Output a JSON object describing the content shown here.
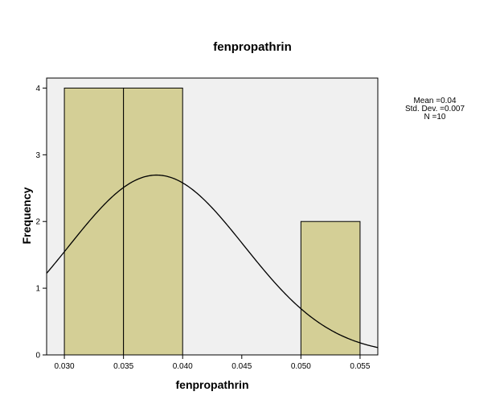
{
  "chart_data": {
    "type": "bar",
    "title": "fenpropathrin",
    "xlabel": "fenpropathrin",
    "ylabel": "Frequency",
    "xlim": [
      0.0285,
      0.0565
    ],
    "ylim": [
      0,
      4.15
    ],
    "bins": [
      {
        "start": 0.03,
        "end": 0.035,
        "count": 4
      },
      {
        "start": 0.035,
        "end": 0.04,
        "count": 4
      },
      {
        "start": 0.05,
        "end": 0.055,
        "count": 2
      }
    ],
    "xticks": [
      "0.030",
      "0.035",
      "0.040",
      "0.045",
      "0.050",
      "0.055"
    ],
    "xtick_values": [
      0.03,
      0.035,
      0.04,
      0.045,
      0.05,
      0.055
    ],
    "yticks": [
      "0",
      "1",
      "2",
      "3",
      "4"
    ],
    "ytick_values": [
      0,
      1,
      2,
      3,
      4
    ],
    "normal_curve": {
      "mean": 0.0378,
      "sd": 0.0074,
      "n": 10,
      "bin_width": 0.005
    },
    "stats": [
      "Mean =0.04",
      "Std. Dev. =0.007",
      "N =10"
    ],
    "colors": {
      "bar_fill": "#d4cf96",
      "plot_bg": "#f0f0f0",
      "stroke": "#000000"
    },
    "grid": false,
    "legend": "top-right"
  }
}
